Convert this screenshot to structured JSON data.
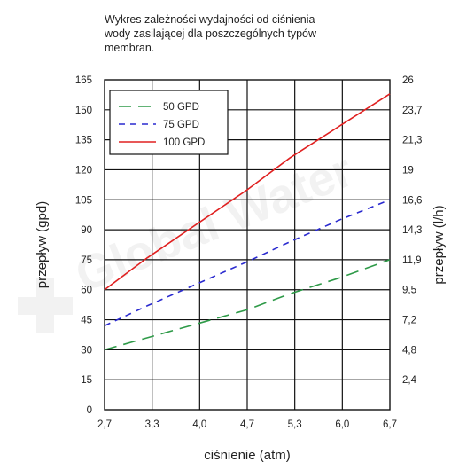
{
  "chart_data": {
    "type": "line",
    "title": "Wykres zależności wydajności od ciśnienia\nwody zasilającej dla poszczególnych typów\nmembran.",
    "xlabel": "ciśnienie (atm)",
    "ylabel": "przepływ (gpd)",
    "y2label": "przepływ (l/h)",
    "x_ticks": [
      "2,7",
      "3,3",
      "4,0",
      "4,7",
      "5,3",
      "6,0",
      "6,7"
    ],
    "xlim": [
      2.7,
      6.7
    ],
    "y_ticks": [
      "0",
      "15",
      "30",
      "45",
      "60",
      "75",
      "90",
      "105",
      "120",
      "135",
      "150",
      "165"
    ],
    "ylim": [
      0,
      165
    ],
    "y2_ticks": [
      "",
      "2,4",
      "4,8",
      "7,2",
      "9,5",
      "11,9",
      "14,3",
      "16,6",
      "19",
      "21,3",
      "23,7",
      "26"
    ],
    "grid": true,
    "legend_position": "top-left",
    "series": [
      {
        "name": "50 GPD",
        "color": "#2e9a48",
        "dash": "dashed",
        "x": [
          2.7,
          3.3,
          4.0,
          4.7,
          5.3,
          6.0,
          6.7
        ],
        "values": [
          30,
          36,
          43,
          50,
          58,
          66,
          75
        ]
      },
      {
        "name": "75 GPD",
        "color": "#2a2acf",
        "dash": "dotted",
        "x": [
          2.7,
          3.3,
          4.0,
          4.7,
          5.3,
          6.0,
          6.7
        ],
        "values": [
          42,
          52,
          63,
          74,
          84,
          95,
          105
        ]
      },
      {
        "name": "100 GPD",
        "color": "#e02020",
        "dash": "solid",
        "x": [
          2.7,
          3.3,
          4.0,
          4.7,
          5.3,
          6.0,
          6.7
        ],
        "values": [
          60,
          76,
          93,
          110,
          126,
          142,
          158
        ]
      }
    ]
  }
}
